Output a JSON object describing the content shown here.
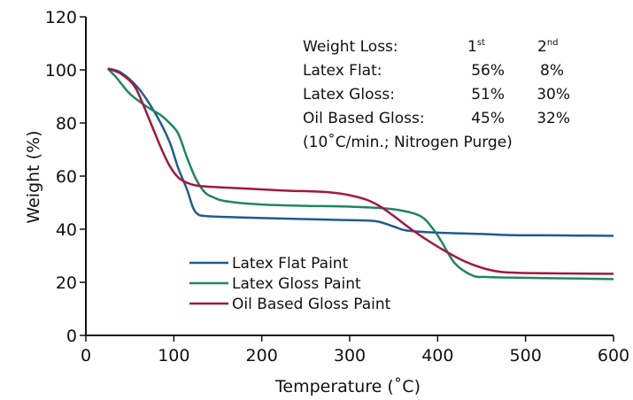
{
  "chart_data": {
    "type": "line",
    "xlabel": "Temperature (˚C)",
    "ylabel": "Weight (%)",
    "xlim": [
      0,
      600
    ],
    "ylim": [
      0,
      120
    ],
    "xticks": [
      0,
      100,
      200,
      300,
      400,
      500,
      600
    ],
    "yticks": [
      0,
      20,
      40,
      60,
      80,
      100,
      120
    ],
    "grid": false,
    "legend_position": "lower-left",
    "series": [
      {
        "name": "Latex Flat Paint",
        "color": "#1f5a96",
        "x": [
          25,
          40,
          60,
          80,
          95,
          105,
          115,
          122,
          128,
          135,
          150,
          200,
          250,
          300,
          330,
          350,
          365,
          400,
          450,
          480,
          520,
          560,
          600
        ],
        "y": [
          100.5,
          99,
          93,
          83,
          73,
          63,
          55,
          48,
          45.5,
          45,
          44.7,
          44.2,
          43.8,
          43.4,
          43,
          41,
          39.5,
          38.7,
          38.2,
          37.8,
          37.7,
          37.6,
          37.5
        ]
      },
      {
        "name": "Latex Gloss Paint",
        "color": "#1f8560",
        "x": [
          25,
          35,
          50,
          70,
          85,
          95,
          105,
          115,
          125,
          135,
          145,
          160,
          200,
          250,
          300,
          350,
          380,
          395,
          405,
          420,
          440,
          455,
          480,
          520,
          560,
          600
        ],
        "y": [
          100.5,
          97,
          91,
          86,
          83,
          80,
          76,
          67,
          59,
          54,
          52,
          50.5,
          49.3,
          48.8,
          48.5,
          47.5,
          45,
          40,
          35,
          27,
          22.5,
          22,
          21.8,
          21.6,
          21.4,
          21.2
        ]
      },
      {
        "name": "Oil Based Gloss Paint",
        "color": "#a3183c",
        "x": [
          25,
          40,
          55,
          65,
          75,
          85,
          95,
          105,
          115,
          125,
          140,
          170,
          200,
          230,
          260,
          280,
          300,
          320,
          335,
          350,
          370,
          390,
          410,
          430,
          450,
          470,
          490,
          520,
          560,
          600
        ],
        "y": [
          100.5,
          98.5,
          94,
          87,
          79,
          71,
          64,
          59.5,
          57.5,
          56.5,
          56,
          55.5,
          55,
          54.5,
          54.2,
          53.8,
          52.8,
          51,
          48.5,
          45,
          40,
          35.5,
          31.5,
          28,
          25.5,
          24,
          23.6,
          23.4,
          23.3,
          23.2
        ]
      }
    ],
    "annotation": {
      "header_label": "Weight Loss:",
      "col1_base": "1",
      "col1_sup": "st",
      "col2_base": "2",
      "col2_sup": "nd",
      "rows": [
        {
          "label": "Latex Flat:",
          "first": "56%",
          "second": "8%"
        },
        {
          "label": "Latex Gloss:",
          "first": "51%",
          "second": "30%"
        },
        {
          "label": "Oil Based Gloss:",
          "first": "45%",
          "second": "32%"
        }
      ],
      "note": "(10˚C/min.; Nitrogen Purge)"
    }
  }
}
